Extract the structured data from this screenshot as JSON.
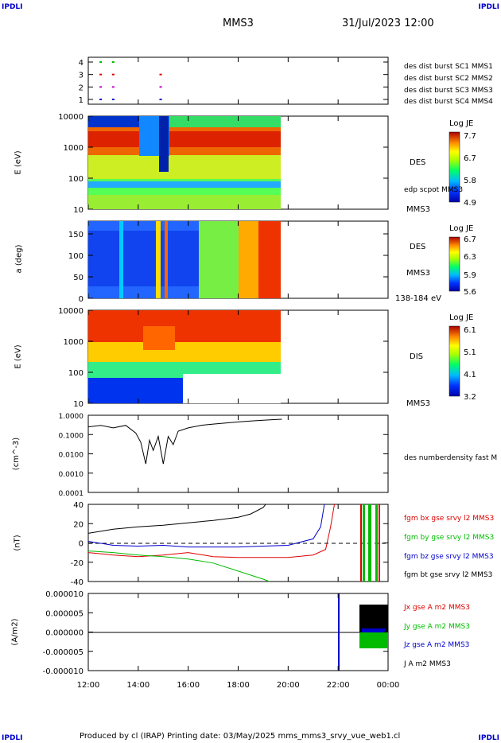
{
  "corner_labels": {
    "top_left": "IPDLI",
    "top_right": "IPDLI",
    "bottom_left": "IPDLI",
    "bottom_right": "IPDLI"
  },
  "header": {
    "mission": "MMS3",
    "datetime": "31/Jul/2023 12:00"
  },
  "footer": {
    "text": "Produced by cl (IRAP)   Printing date: 03/May/2025   mms_mms3_srvy_vue_web1.cl"
  },
  "colors": {
    "c1": "#0000cc",
    "c2": "#cc00cc",
    "c3": "#dd0000",
    "c4": "#00bb00",
    "black": "#000000"
  },
  "chart_data": [
    {
      "type": "scatter",
      "panel": "burst-availability",
      "yticks": [
        "4",
        "3",
        "2",
        "1"
      ],
      "legend": [
        {
          "name": "des dist burst SC1 MMS1",
          "color": "#0000cc"
        },
        {
          "name": "des dist burst SC2 MMS2",
          "color": "#cc00cc"
        },
        {
          "name": "des dist burst SC3 MMS3",
          "color": "#dd0000"
        },
        {
          "name": "des dist burst SC4 MMS4",
          "color": "#00bb00"
        }
      ],
      "markers": [
        {
          "sc": 4,
          "t": [
            12.45,
            12.95
          ]
        },
        {
          "sc": 3,
          "t": [
            12.45,
            12.95,
            14.85
          ]
        },
        {
          "sc": 2,
          "t": [
            12.45,
            12.95,
            14.85
          ]
        },
        {
          "sc": 1,
          "t": [
            12.45,
            12.95,
            14.85
          ]
        }
      ]
    },
    {
      "type": "heatmap",
      "panel": "des-energy",
      "ylabel": "E (eV)",
      "yscale": "log",
      "yticks": [
        "10000",
        "1000",
        "100",
        "10"
      ],
      "side_label": "DES",
      "side_label2": "edp scpot MMS3",
      "bottom_label": "MMS3",
      "colorbar": {
        "title": "Log JE",
        "ticks": [
          "7.7",
          "6.7",
          "5.8",
          "4.9"
        ]
      }
    },
    {
      "type": "heatmap",
      "panel": "des-pitch",
      "ylabel": "a (deg)",
      "yticks": [
        "150",
        "100",
        "50",
        "0"
      ],
      "side_label": "DES",
      "side_label2": "MMS3",
      "bottom_label": "138-184 eV",
      "colorbar": {
        "title": "Log JE",
        "ticks": [
          "6.7",
          "6.3",
          "5.9",
          "5.6"
        ]
      }
    },
    {
      "type": "heatmap",
      "panel": "dis-energy",
      "ylabel": "E (eV)",
      "yscale": "log",
      "yticks": [
        "10000",
        "1000",
        "100",
        "10"
      ],
      "side_label": "DIS",
      "bottom_label": "MMS3",
      "colorbar": {
        "title": "Log JE",
        "ticks": [
          "6.1",
          "5.1",
          "4.1",
          "3.2"
        ]
      }
    },
    {
      "type": "line",
      "panel": "density",
      "ylabel": "(cm^-3)",
      "yscale": "log",
      "yticks": [
        "1.0000",
        "0.1000",
        "0.0100",
        "0.0010",
        "0.0001"
      ],
      "series": [
        {
          "name": "des numberdensity fast M",
          "color": "#000000",
          "t": [
            12.0,
            12.5,
            13.0,
            13.5,
            13.9,
            14.1,
            14.3,
            14.45,
            14.6,
            14.8,
            15.0,
            15.2,
            15.4,
            15.6,
            16.0,
            16.5,
            17.0,
            17.5,
            18.0,
            18.5,
            19.0,
            19.5,
            19.75
          ],
          "v": [
            0.25,
            0.3,
            0.22,
            0.3,
            0.12,
            0.04,
            0.003,
            0.05,
            0.015,
            0.08,
            0.003,
            0.08,
            0.03,
            0.15,
            0.22,
            0.3,
            0.35,
            0.4,
            0.45,
            0.5,
            0.55,
            0.6,
            0.62
          ]
        }
      ]
    },
    {
      "type": "line",
      "panel": "magnetic-field",
      "ylabel": "(nT)",
      "yticks": [
        "40",
        "20",
        "0",
        "-20",
        "-40"
      ],
      "ylim": [
        -48,
        48
      ],
      "series": [
        {
          "name": "fgm bx gse srvy l2 MMS3",
          "color": "#dd0000",
          "t": [
            12.0,
            13.0,
            14.0,
            15.0,
            16.0,
            17.0,
            18.0,
            19.0,
            20.0,
            21.0,
            21.5,
            21.7,
            21.85
          ],
          "v": [
            -12,
            -15,
            -17,
            -15,
            -12,
            -17,
            -18,
            -18,
            -18,
            -15,
            -8,
            20,
            48
          ]
        },
        {
          "name": "fgm by gse srvy l2 MMS3",
          "color": "#00bb00",
          "t": [
            12.0,
            13.0,
            14.0,
            15.0,
            16.0,
            17.0,
            18.0,
            19.0,
            19.25
          ],
          "v": [
            -10,
            -12,
            -15,
            -17,
            -20,
            -25,
            -35,
            -45,
            -48
          ]
        },
        {
          "name": "fgm bz gse srvy l2 MMS3",
          "color": "#0000cc",
          "t": [
            12.0,
            13.0,
            14.0,
            15.0,
            16.0,
            17.0,
            18.0,
            19.0,
            20.0,
            21.0,
            21.3,
            21.45
          ],
          "v": [
            2,
            -3,
            -4,
            -3,
            -5,
            -5,
            -5,
            -4,
            -3,
            5,
            20,
            48
          ]
        },
        {
          "name": "fgm bt gse srvy l2 MMS3",
          "color": "#000000",
          "t": [
            12.0,
            13.0,
            14.0,
            15.0,
            16.0,
            17.0,
            18.0,
            18.5,
            19.0,
            19.1
          ],
          "v": [
            12,
            17,
            20,
            22,
            25,
            28,
            32,
            36,
            44,
            48
          ]
        }
      ]
    },
    {
      "type": "line",
      "panel": "current-density",
      "ylabel": "(A/m2)",
      "yticks": [
        "0.000010",
        "0.000005",
        "0.000000",
        "-0.000005",
        "-0.000010"
      ],
      "ylim": [
        -1e-05,
        1e-05
      ],
      "series": [
        {
          "name": "Jx gse A m2 MMS3",
          "color": "#dd0000"
        },
        {
          "name": "Jy gse A m2 MMS3",
          "color": "#00bb00"
        },
        {
          "name": "Jz gse A m2 MMS3",
          "color": "#0000cc"
        },
        {
          "name": "J A m2 MMS3",
          "color": "#000000"
        }
      ]
    }
  ],
  "time_axis": {
    "ticks": [
      "12:00",
      "14:00",
      "16:00",
      "18:00",
      "20:00",
      "22:00",
      "00:00"
    ],
    "range": [
      12,
      24
    ]
  }
}
